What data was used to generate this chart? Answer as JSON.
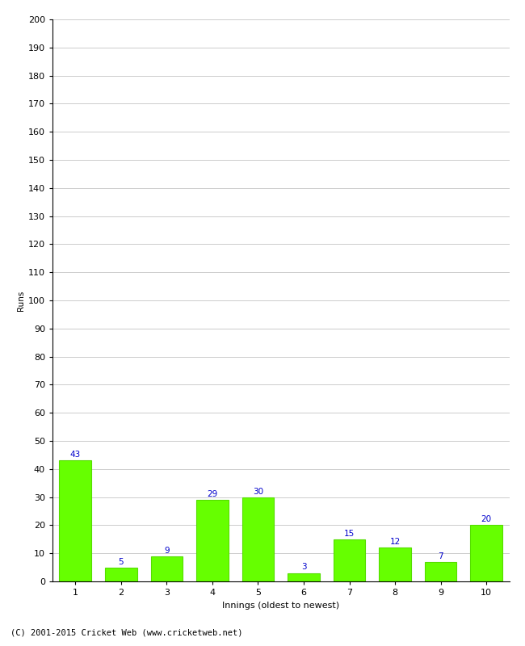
{
  "categories": [
    "1",
    "2",
    "3",
    "4",
    "5",
    "6",
    "7",
    "8",
    "9",
    "10"
  ],
  "values": [
    43,
    5,
    9,
    29,
    30,
    3,
    15,
    12,
    7,
    20
  ],
  "bar_color": "#66ff00",
  "bar_edgecolor": "#55dd00",
  "label_color": "#0000cc",
  "xlabel": "Innings (oldest to newest)",
  "ylabel": "Runs",
  "ylim": [
    0,
    200
  ],
  "ytick_step": 10,
  "background_color": "#ffffff",
  "grid_color": "#cccccc",
  "footer": "(C) 2001-2015 Cricket Web (www.cricketweb.net)",
  "label_fontsize": 7.5,
  "axis_fontsize": 8,
  "ylabel_fontsize": 7.5,
  "footer_fontsize": 7.5,
  "xlabel_fontsize": 8
}
